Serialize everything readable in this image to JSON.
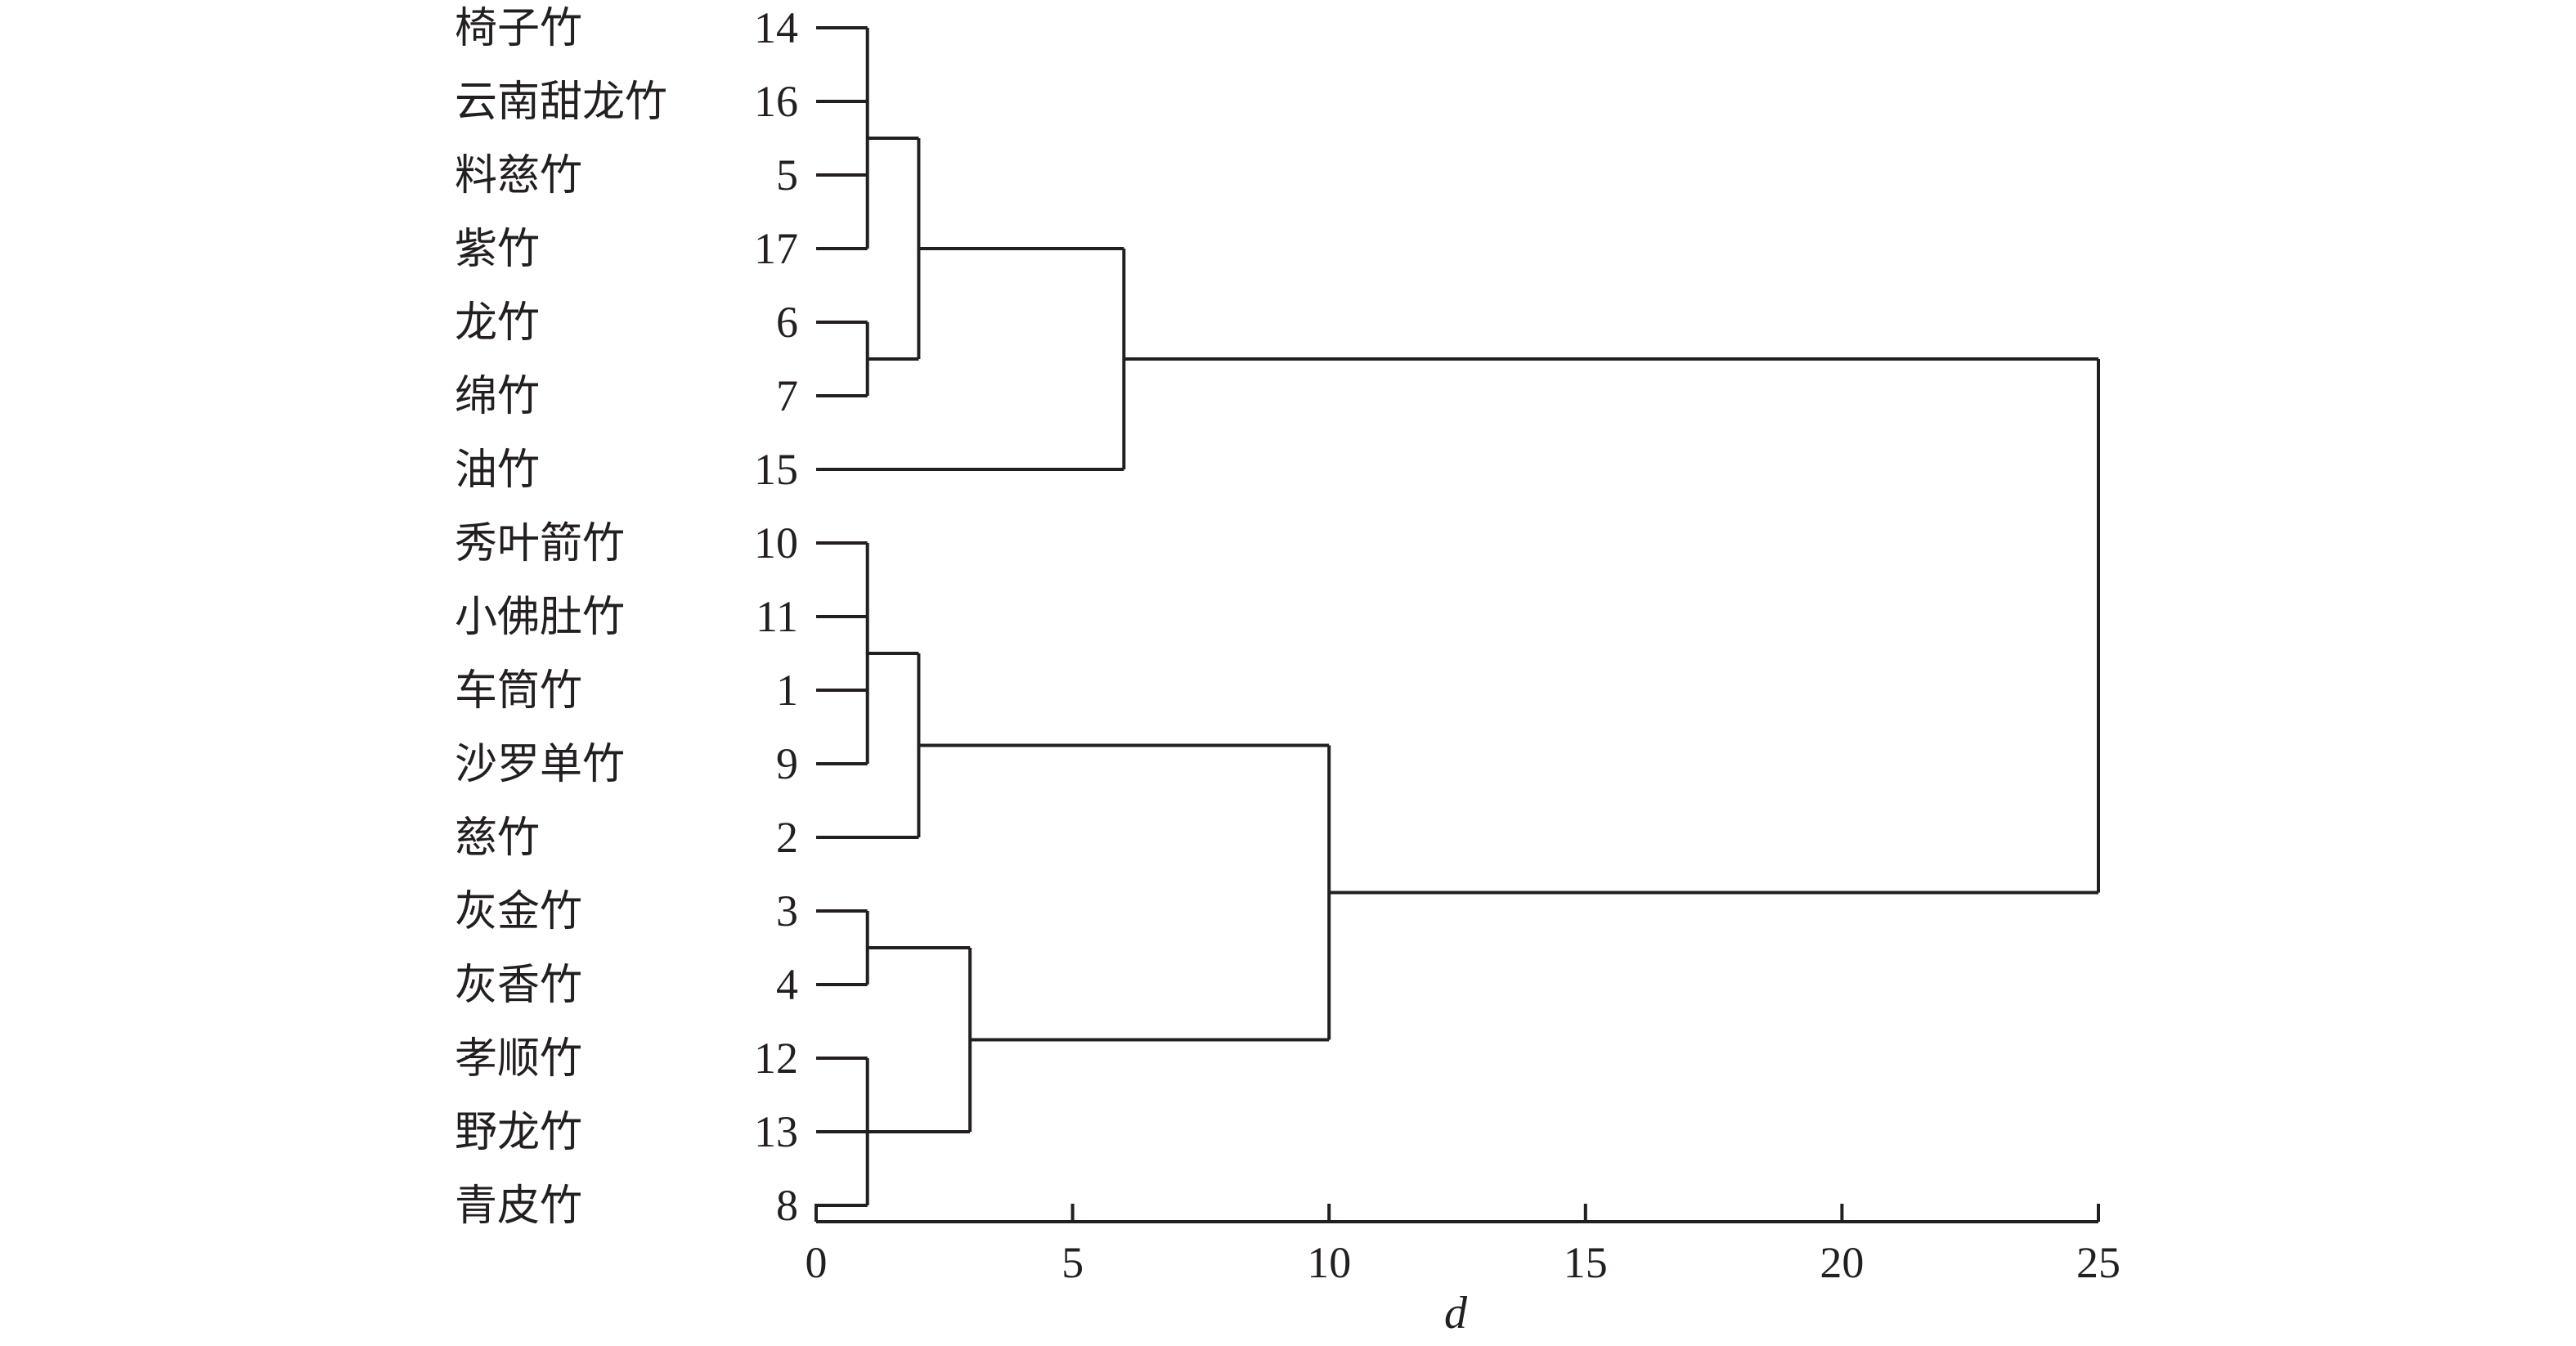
{
  "leaves": [
    {
      "name": "椅子竹",
      "id": "14"
    },
    {
      "name": "云南甜龙竹",
      "id": "16"
    },
    {
      "name": "料慈竹",
      "id": "5"
    },
    {
      "name": "紫竹",
      "id": "17"
    },
    {
      "name": "龙竹",
      "id": "6"
    },
    {
      "name": "绵竹",
      "id": "7"
    },
    {
      "name": "油竹",
      "id": "15"
    },
    {
      "name": "秀叶箭竹",
      "id": "10"
    },
    {
      "name": "小佛肚竹",
      "id": "11"
    },
    {
      "name": "车筒竹",
      "id": "1"
    },
    {
      "name": "沙罗单竹",
      "id": "9"
    },
    {
      "name": "慈竹",
      "id": "2"
    },
    {
      "name": "灰金竹",
      "id": "3"
    },
    {
      "name": "灰香竹",
      "id": "4"
    },
    {
      "name": "孝顺竹",
      "id": "12"
    },
    {
      "name": "野龙竹",
      "id": "13"
    },
    {
      "name": "青皮竹",
      "id": "8"
    }
  ],
  "merges": [
    {
      "id": "A",
      "members": [
        0,
        1,
        2,
        3
      ],
      "height": 1
    },
    {
      "id": "B",
      "members": [
        4,
        5
      ],
      "height": 1
    },
    {
      "id": "C",
      "members": [
        "A",
        "B"
      ],
      "height": 2
    },
    {
      "id": "D",
      "members": [
        "C",
        6
      ],
      "height": 6
    },
    {
      "id": "E",
      "members": [
        7,
        8,
        9,
        10
      ],
      "height": 1
    },
    {
      "id": "F",
      "members": [
        "E",
        11
      ],
      "height": 2
    },
    {
      "id": "G",
      "members": [
        12,
        13
      ],
      "height": 1
    },
    {
      "id": "H",
      "members": [
        14,
        15,
        16
      ],
      "height": 1
    },
    {
      "id": "I",
      "members": [
        "G",
        "H"
      ],
      "height": 3
    },
    {
      "id": "J",
      "members": [
        "F",
        "I"
      ],
      "height": 10
    },
    {
      "id": "K",
      "members": [
        "D",
        "J"
      ],
      "height": 25
    }
  ],
  "axis": {
    "title": "d",
    "min": 0,
    "max": 25,
    "ticks": [
      0,
      5,
      10,
      15,
      20,
      25
    ]
  }
}
